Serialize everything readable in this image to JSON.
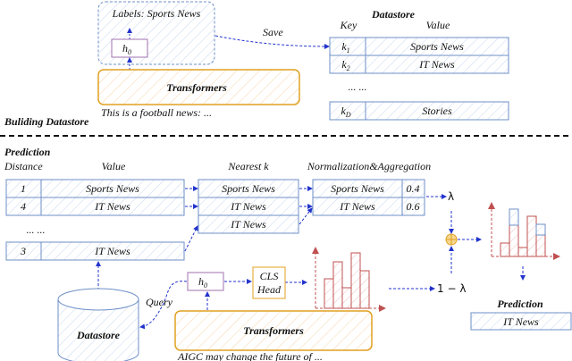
{
  "colors": {
    "blue": "#6d8fc7",
    "arrow": "#2233cc",
    "orange": "#e0a020",
    "purple": "#a070b0",
    "red": "#c05050"
  },
  "building": {
    "section_label": "Buliding Datastore",
    "labels_text": "Labels: Sports News",
    "hidden": "h",
    "hidden_sub": "0",
    "transformers": "Transformers",
    "input_text": "This is a football news: ...",
    "save_label": "Save",
    "datastore": {
      "title": "Datastore",
      "key_header": "Key",
      "value_header": "Value",
      "rows": [
        {
          "key": "k",
          "sub": "1",
          "value": "Sports News"
        },
        {
          "key": "k",
          "sub": "2",
          "value": "IT News"
        }
      ],
      "ellipsis": "... ...",
      "last_row": {
        "key": "k",
        "sub": "D",
        "value": "Stories"
      }
    }
  },
  "prediction": {
    "section_label": "Prediction",
    "distance_header": "Distance",
    "value_header": "Value",
    "nearest_header": "Nearest k",
    "norm_header": "Normalization&Aggregation",
    "rows": [
      {
        "distance": "1",
        "value": "Sports News"
      },
      {
        "distance": "4",
        "value": "IT News"
      }
    ],
    "ellipsis": "... ...",
    "last_row": {
      "distance": "3",
      "value": "IT News"
    },
    "nearest": [
      "Sports News",
      "IT News",
      "IT News"
    ],
    "aggregated": [
      {
        "label": "Sports News",
        "prob": "0.4"
      },
      {
        "label": "IT News",
        "prob": "0.6"
      }
    ],
    "lambda": "λ",
    "one_minus_lambda": "1 − λ",
    "hidden": "h",
    "hidden_sub": "0",
    "cls_head": [
      "CLS",
      "Head"
    ],
    "query_label": "Query",
    "datastore_label": "Datastore",
    "transformers": "Transformers",
    "input_text": "AIGC may change the future of ...",
    "output_title": "Prediction",
    "output_value": "IT News"
  }
}
